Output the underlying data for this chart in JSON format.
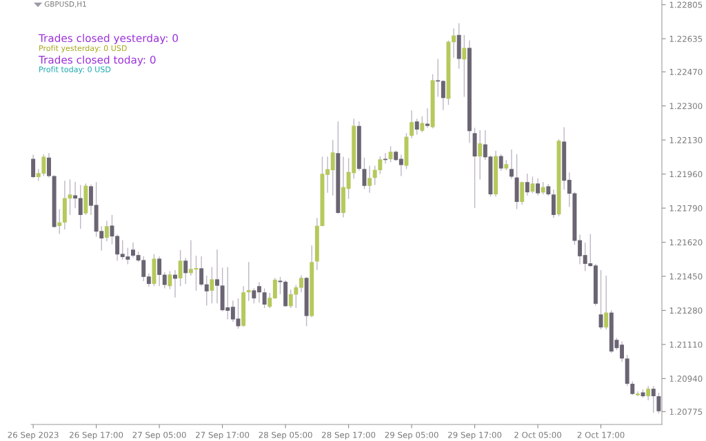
{
  "chart_data": {
    "type": "candlestick",
    "title": "GBPUSD,H1",
    "annotations": [
      "Trades closed yesterday: 0",
      "Profit yesterday: 0 USD",
      "Trades closed today: 0",
      "Profit today: 0 USD"
    ],
    "categories": [
      "26 Sep 2023",
      null,
      null,
      null,
      null,
      null,
      null,
      null,
      null,
      null,
      null,
      null,
      "26 Sep 17:00",
      null,
      null,
      null,
      null,
      null,
      null,
      null,
      null,
      null,
      null,
      null,
      "27 Sep 05:00",
      null,
      null,
      null,
      null,
      null,
      null,
      null,
      null,
      null,
      null,
      null,
      "27 Sep 17:00",
      null,
      null,
      null,
      null,
      null,
      null,
      null,
      null,
      null,
      null,
      null,
      "28 Sep 05:00",
      null,
      null,
      null,
      null,
      null,
      null,
      null,
      null,
      null,
      null,
      null,
      "28 Sep 17:00",
      null,
      null,
      null,
      null,
      null,
      null,
      null,
      null,
      null,
      null,
      null,
      "29 Sep 05:00",
      null,
      null,
      null,
      null,
      null,
      null,
      null,
      null,
      null,
      null,
      null,
      "29 Sep 17:00",
      null,
      null,
      null,
      null,
      null,
      null,
      null,
      null,
      null,
      null,
      null,
      "2 Oct 05:00",
      null,
      null,
      null,
      null,
      null,
      null,
      null,
      null,
      null,
      null,
      null,
      "2 Oct 17:00",
      null,
      null,
      null,
      null,
      null,
      null,
      null,
      null,
      null,
      null,
      null
    ],
    "ohlc": [
      [
        1.22036,
        1.22057,
        1.2194,
        1.21945
      ],
      [
        1.21945,
        1.21985,
        1.21927,
        1.21965
      ],
      [
        1.21962,
        1.22059,
        1.2195,
        1.22046
      ],
      [
        1.22042,
        1.22065,
        1.21942,
        1.2195
      ],
      [
        1.2195,
        1.21954,
        1.21693,
        1.21696
      ],
      [
        1.21701,
        1.21785,
        1.21661,
        1.21719
      ],
      [
        1.21718,
        1.21927,
        1.21684,
        1.2184
      ],
      [
        1.21838,
        1.21933,
        1.21756,
        1.21858
      ],
      [
        1.21854,
        1.21922,
        1.2179,
        1.21838
      ],
      [
        1.2184,
        1.21905,
        1.21687,
        1.21756
      ],
      [
        1.21764,
        1.21913,
        1.21756,
        1.21902
      ],
      [
        1.21899,
        1.21908,
        1.21756,
        1.21802
      ],
      [
        1.21806,
        1.2192,
        1.21647,
        1.21673
      ],
      [
        1.21676,
        1.21699,
        1.21579,
        1.21639
      ],
      [
        1.21642,
        1.21727,
        1.21624,
        1.217
      ],
      [
        1.21703,
        1.21756,
        1.2161,
        1.21649
      ],
      [
        1.21651,
        1.21658,
        1.21527,
        1.21559
      ],
      [
        1.21562,
        1.2163,
        1.21533,
        1.21546
      ],
      [
        1.21549,
        1.21592,
        1.2151,
        1.21533
      ],
      [
        1.21583,
        1.21618,
        1.21544,
        1.21553
      ],
      [
        1.21556,
        1.21573,
        1.21521,
        1.21529
      ],
      [
        1.21531,
        1.2155,
        1.21426,
        1.21447
      ],
      [
        1.21449,
        1.21464,
        1.21398,
        1.21412
      ],
      [
        1.21412,
        1.21561,
        1.21401,
        1.21538
      ],
      [
        1.21538,
        1.21549,
        1.21401,
        1.21457
      ],
      [
        1.21458,
        1.2147,
        1.2139,
        1.21407
      ],
      [
        1.21401,
        1.21476,
        1.21386,
        1.21459
      ],
      [
        1.21458,
        1.21481,
        1.21344,
        1.21438
      ],
      [
        1.2144,
        1.21581,
        1.21401,
        1.21528
      ],
      [
        1.21528,
        1.21542,
        1.21412,
        1.21466
      ],
      [
        1.21466,
        1.2163,
        1.21453,
        1.21487
      ],
      [
        1.21484,
        1.21553,
        1.21378,
        1.21491
      ],
      [
        1.2149,
        1.2155,
        1.21401,
        1.21409
      ],
      [
        1.2141,
        1.21453,
        1.21304,
        1.21375
      ],
      [
        1.21378,
        1.21496,
        1.21315,
        1.21435
      ],
      [
        1.21435,
        1.21584,
        1.21315,
        1.21403
      ],
      [
        1.21404,
        1.21493,
        1.21275,
        1.21281
      ],
      [
        1.21295,
        1.21496,
        1.21235,
        1.21278
      ],
      [
        1.21298,
        1.21329,
        1.21223,
        1.21235
      ],
      [
        1.21239,
        1.2134,
        1.21189,
        1.21201
      ],
      [
        1.21203,
        1.21401,
        1.21198,
        1.2137
      ],
      [
        1.2137,
        1.21521,
        1.21327,
        1.21381
      ],
      [
        1.2138,
        1.2139,
        1.21315,
        1.2134
      ],
      [
        1.21401,
        1.21421,
        1.21318,
        1.2137
      ],
      [
        1.2137,
        1.2139,
        1.21292,
        1.21309
      ],
      [
        1.21298,
        1.21367,
        1.21291,
        1.21343
      ],
      [
        1.2134,
        1.21441,
        1.21338,
        1.21433
      ],
      [
        1.21428,
        1.21447,
        1.21361,
        1.21421
      ],
      [
        1.21423,
        1.2143,
        1.21298,
        1.21301
      ],
      [
        1.21301,
        1.21384,
        1.21292,
        1.21361
      ],
      [
        1.21359,
        1.21407,
        1.21292,
        1.21395
      ],
      [
        1.21393,
        1.21455,
        1.2137,
        1.21442
      ],
      [
        1.21442,
        1.21447,
        1.21201,
        1.21252
      ],
      [
        1.21252,
        1.21604,
        1.21246,
        1.21521
      ],
      [
        1.21524,
        1.21741,
        1.21481,
        1.21702
      ],
      [
        1.21701,
        1.22046,
        1.21699,
        1.21961
      ],
      [
        1.21956,
        1.22047,
        1.21867,
        1.21984
      ],
      [
        1.21979,
        1.2213,
        1.21853,
        1.22068
      ],
      [
        1.22064,
        1.22222,
        1.21762,
        1.21766
      ],
      [
        1.21766,
        1.22046,
        1.21744,
        1.21895
      ],
      [
        1.21886,
        1.22039,
        1.21836,
        1.21971
      ],
      [
        1.21965,
        1.22236,
        1.21936,
        1.22201
      ],
      [
        1.222,
        1.22222,
        1.21977,
        1.21986
      ],
      [
        1.21985,
        1.22042,
        1.21885,
        1.21901
      ],
      [
        1.21901,
        1.22002,
        1.21867,
        1.2194
      ],
      [
        1.21941,
        1.22002,
        1.21905,
        1.21981
      ],
      [
        1.21979,
        1.22048,
        1.2196,
        1.22033
      ],
      [
        1.22036,
        1.22065,
        1.22013,
        1.2203
      ],
      [
        1.22034,
        1.22099,
        1.22019,
        1.22071
      ],
      [
        1.22071,
        1.22077,
        1.22026,
        1.2203
      ],
      [
        1.22036,
        1.22057,
        1.2195,
        1.22005
      ],
      [
        1.22002,
        1.22164,
        1.21985,
        1.22146
      ],
      [
        1.22151,
        1.22277,
        1.22139,
        1.22219
      ],
      [
        1.22222,
        1.22236,
        1.22156,
        1.22182
      ],
      [
        1.22176,
        1.22248,
        1.22168,
        1.22215
      ],
      [
        1.22211,
        1.22288,
        1.22191,
        1.222
      ],
      [
        1.22194,
        1.22458,
        1.22188,
        1.22428
      ],
      [
        1.22428,
        1.22534,
        1.22345,
        1.22422
      ],
      [
        1.22424,
        1.22428,
        1.22279,
        1.22339
      ],
      [
        1.22336,
        1.22626,
        1.22305,
        1.2262
      ],
      [
        1.22618,
        1.22686,
        1.2254,
        1.22651
      ],
      [
        1.22654,
        1.22712,
        1.22485,
        1.22534
      ],
      [
        1.22532,
        1.22654,
        1.22345,
        1.22589
      ],
      [
        1.22589,
        1.22626,
        1.22116,
        1.22174
      ],
      [
        1.22164,
        1.22191,
        1.2179,
        1.22048
      ],
      [
        1.22048,
        1.22179,
        1.21933,
        1.22113
      ],
      [
        1.22108,
        1.22179,
        1.2203,
        1.22044
      ],
      [
        1.22047,
        1.22053,
        1.21847,
        1.21859
      ],
      [
        1.21859,
        1.22076,
        1.21847,
        1.2205
      ],
      [
        1.2205,
        1.22059,
        1.21977,
        1.21988
      ],
      [
        1.21988,
        1.2203,
        1.21979,
        1.22009
      ],
      [
        1.21985,
        1.22082,
        1.21936,
        1.21947
      ],
      [
        1.21943,
        1.22059,
        1.21785,
        1.21821
      ],
      [
        1.21821,
        1.21922,
        1.21807,
        1.2192
      ],
      [
        1.2192,
        1.21962,
        1.21853,
        1.21869
      ],
      [
        1.21872,
        1.21947,
        1.21864,
        1.21913
      ],
      [
        1.21913,
        1.21939,
        1.21853,
        1.21864
      ],
      [
        1.21868,
        1.2192,
        1.21859,
        1.21895
      ],
      [
        1.21899,
        1.2191,
        1.21851,
        1.21859
      ],
      [
        1.21858,
        1.21882,
        1.21741,
        1.21756
      ],
      [
        1.21759,
        1.22133,
        1.2175,
        1.22126
      ],
      [
        1.22122,
        1.22194,
        1.21882,
        1.21927
      ],
      [
        1.21931,
        1.21968,
        1.21796,
        1.21862
      ],
      [
        1.21864,
        1.21871,
        1.21607,
        1.21627
      ],
      [
        1.2163,
        1.21658,
        1.2151,
        1.2155
      ],
      [
        1.21556,
        1.21618,
        1.21476,
        1.21512
      ],
      [
        1.21515,
        1.21661,
        1.21498,
        1.21501
      ],
      [
        1.21504,
        1.21512,
        1.21304,
        1.21313
      ],
      [
        1.2126,
        1.21481,
        1.21185,
        1.21195
      ],
      [
        1.21195,
        1.21453,
        1.21185,
        1.21269
      ],
      [
        1.21269,
        1.21281,
        1.21068,
        1.21075
      ],
      [
        1.21133,
        1.21143,
        1.21082,
        1.21092
      ],
      [
        1.21109,
        1.21126,
        1.21023,
        1.2104
      ],
      [
        1.2104,
        1.21058,
        1.20903,
        1.20914
      ],
      [
        1.20914,
        1.20927,
        1.20858,
        1.20863
      ],
      [
        1.20857,
        1.20876,
        1.20852,
        1.20865
      ],
      [
        1.20871,
        1.20886,
        1.20845,
        1.20852
      ],
      [
        1.20852,
        1.20903,
        1.20831,
        1.20889
      ],
      [
        1.20889,
        1.20903,
        1.20769,
        1.20852
      ],
      [
        1.20852,
        1.20869,
        1.20766,
        1.20777
      ]
    ],
    "colors": [
      "#6b6473",
      "#b5c95c",
      "#b5c95c",
      "#6b6473",
      "#6b6473",
      "#b5c95c",
      "#b5c95c",
      "#b5c95c",
      "#6b6473",
      "#6b6473",
      "#b5c95c",
      "#6b6473",
      "#6b6473",
      "#6b6473",
      "#b5c95c",
      "#6b6473",
      "#6b6473",
      "#6b6473",
      "#6b6473",
      "#6b6473",
      "#6b6473",
      "#6b6473",
      "#6b6473",
      "#b5c95c",
      "#6b6473",
      "#6b6473",
      "#b5c95c",
      "#6b6473",
      "#b5c95c",
      "#6b6473",
      "#b5c95c",
      "#b5c95c",
      "#6b6473",
      "#6b6473",
      "#b5c95c",
      "#6b6473",
      "#6b6473",
      "#6b6473",
      "#6b6473",
      "#6b6473",
      "#b5c95c",
      "#b5c95c",
      "#6b6473",
      "#6b6473",
      "#6b6473",
      "#b5c95c",
      "#b5c95c",
      "#6b6473",
      "#6b6473",
      "#b5c95c",
      "#b5c95c",
      "#b5c95c",
      "#6b6473",
      "#b5c95c",
      "#b5c95c",
      "#b5c95c",
      "#b5c95c",
      "#b5c95c",
      "#6b6473",
      "#b5c95c",
      "#b5c95c",
      "#b5c95c",
      "#6b6473",
      "#6b6473",
      "#b5c95c",
      "#b5c95c",
      "#b5c95c",
      "#6b6473",
      "#b5c95c",
      "#6b6473",
      "#6b6473",
      "#b5c95c",
      "#b5c95c",
      "#6b6473",
      "#b5c95c",
      "#6b6473",
      "#b5c95c",
      "#6b6473",
      "#6b6473",
      "#b5c95c",
      "#b5c95c",
      "#6b6473",
      "#b5c95c",
      "#6b6473",
      "#6b6473",
      "#b5c95c",
      "#6b6473",
      "#6b6473",
      "#b5c95c",
      "#6b6473",
      "#b5c95c",
      "#6b6473",
      "#6b6473",
      "#b5c95c",
      "#6b6473",
      "#b5c95c",
      "#6b6473",
      "#b5c95c",
      "#6b6473",
      "#6b6473",
      "#b5c95c",
      "#6b6473",
      "#6b6473",
      "#6b6473",
      "#6b6473",
      "#6b6473",
      "#6b6473",
      "#6b6473",
      "#6b6473",
      "#b5c95c",
      "#6b6473",
      "#6b6473",
      "#6b6473",
      "#6b6473",
      "#6b6473",
      "#b5c95c",
      "#6b6473",
      "#b5c95c",
      "#6b6473",
      "#6b6473"
    ],
    "ylim": [
      1.20711,
      1.22826
    ],
    "yticks": [
      1.22805,
      1.22635,
      {
        "value": 1.2247,
        "label": "1.22470"
      },
      {
        "value": 1.223,
        "label": "1.22300"
      },
      {
        "value": 1.2213,
        "label": "1.22130"
      },
      {
        "value": 1.2196,
        "label": "1.21960"
      },
      {
        "value": 1.2179,
        "label": "1.21790"
      },
      {
        "value": 1.2162,
        "label": "1.21620"
      },
      {
        "value": 1.2145,
        "label": "1.21450"
      },
      {
        "value": 1.2128,
        "label": "1.21280"
      },
      {
        "value": 1.2111,
        "label": "1.21110"
      },
      {
        "value": 1.2094,
        "label": "1.20940"
      },
      1.20775
    ],
    "grid": false
  }
}
